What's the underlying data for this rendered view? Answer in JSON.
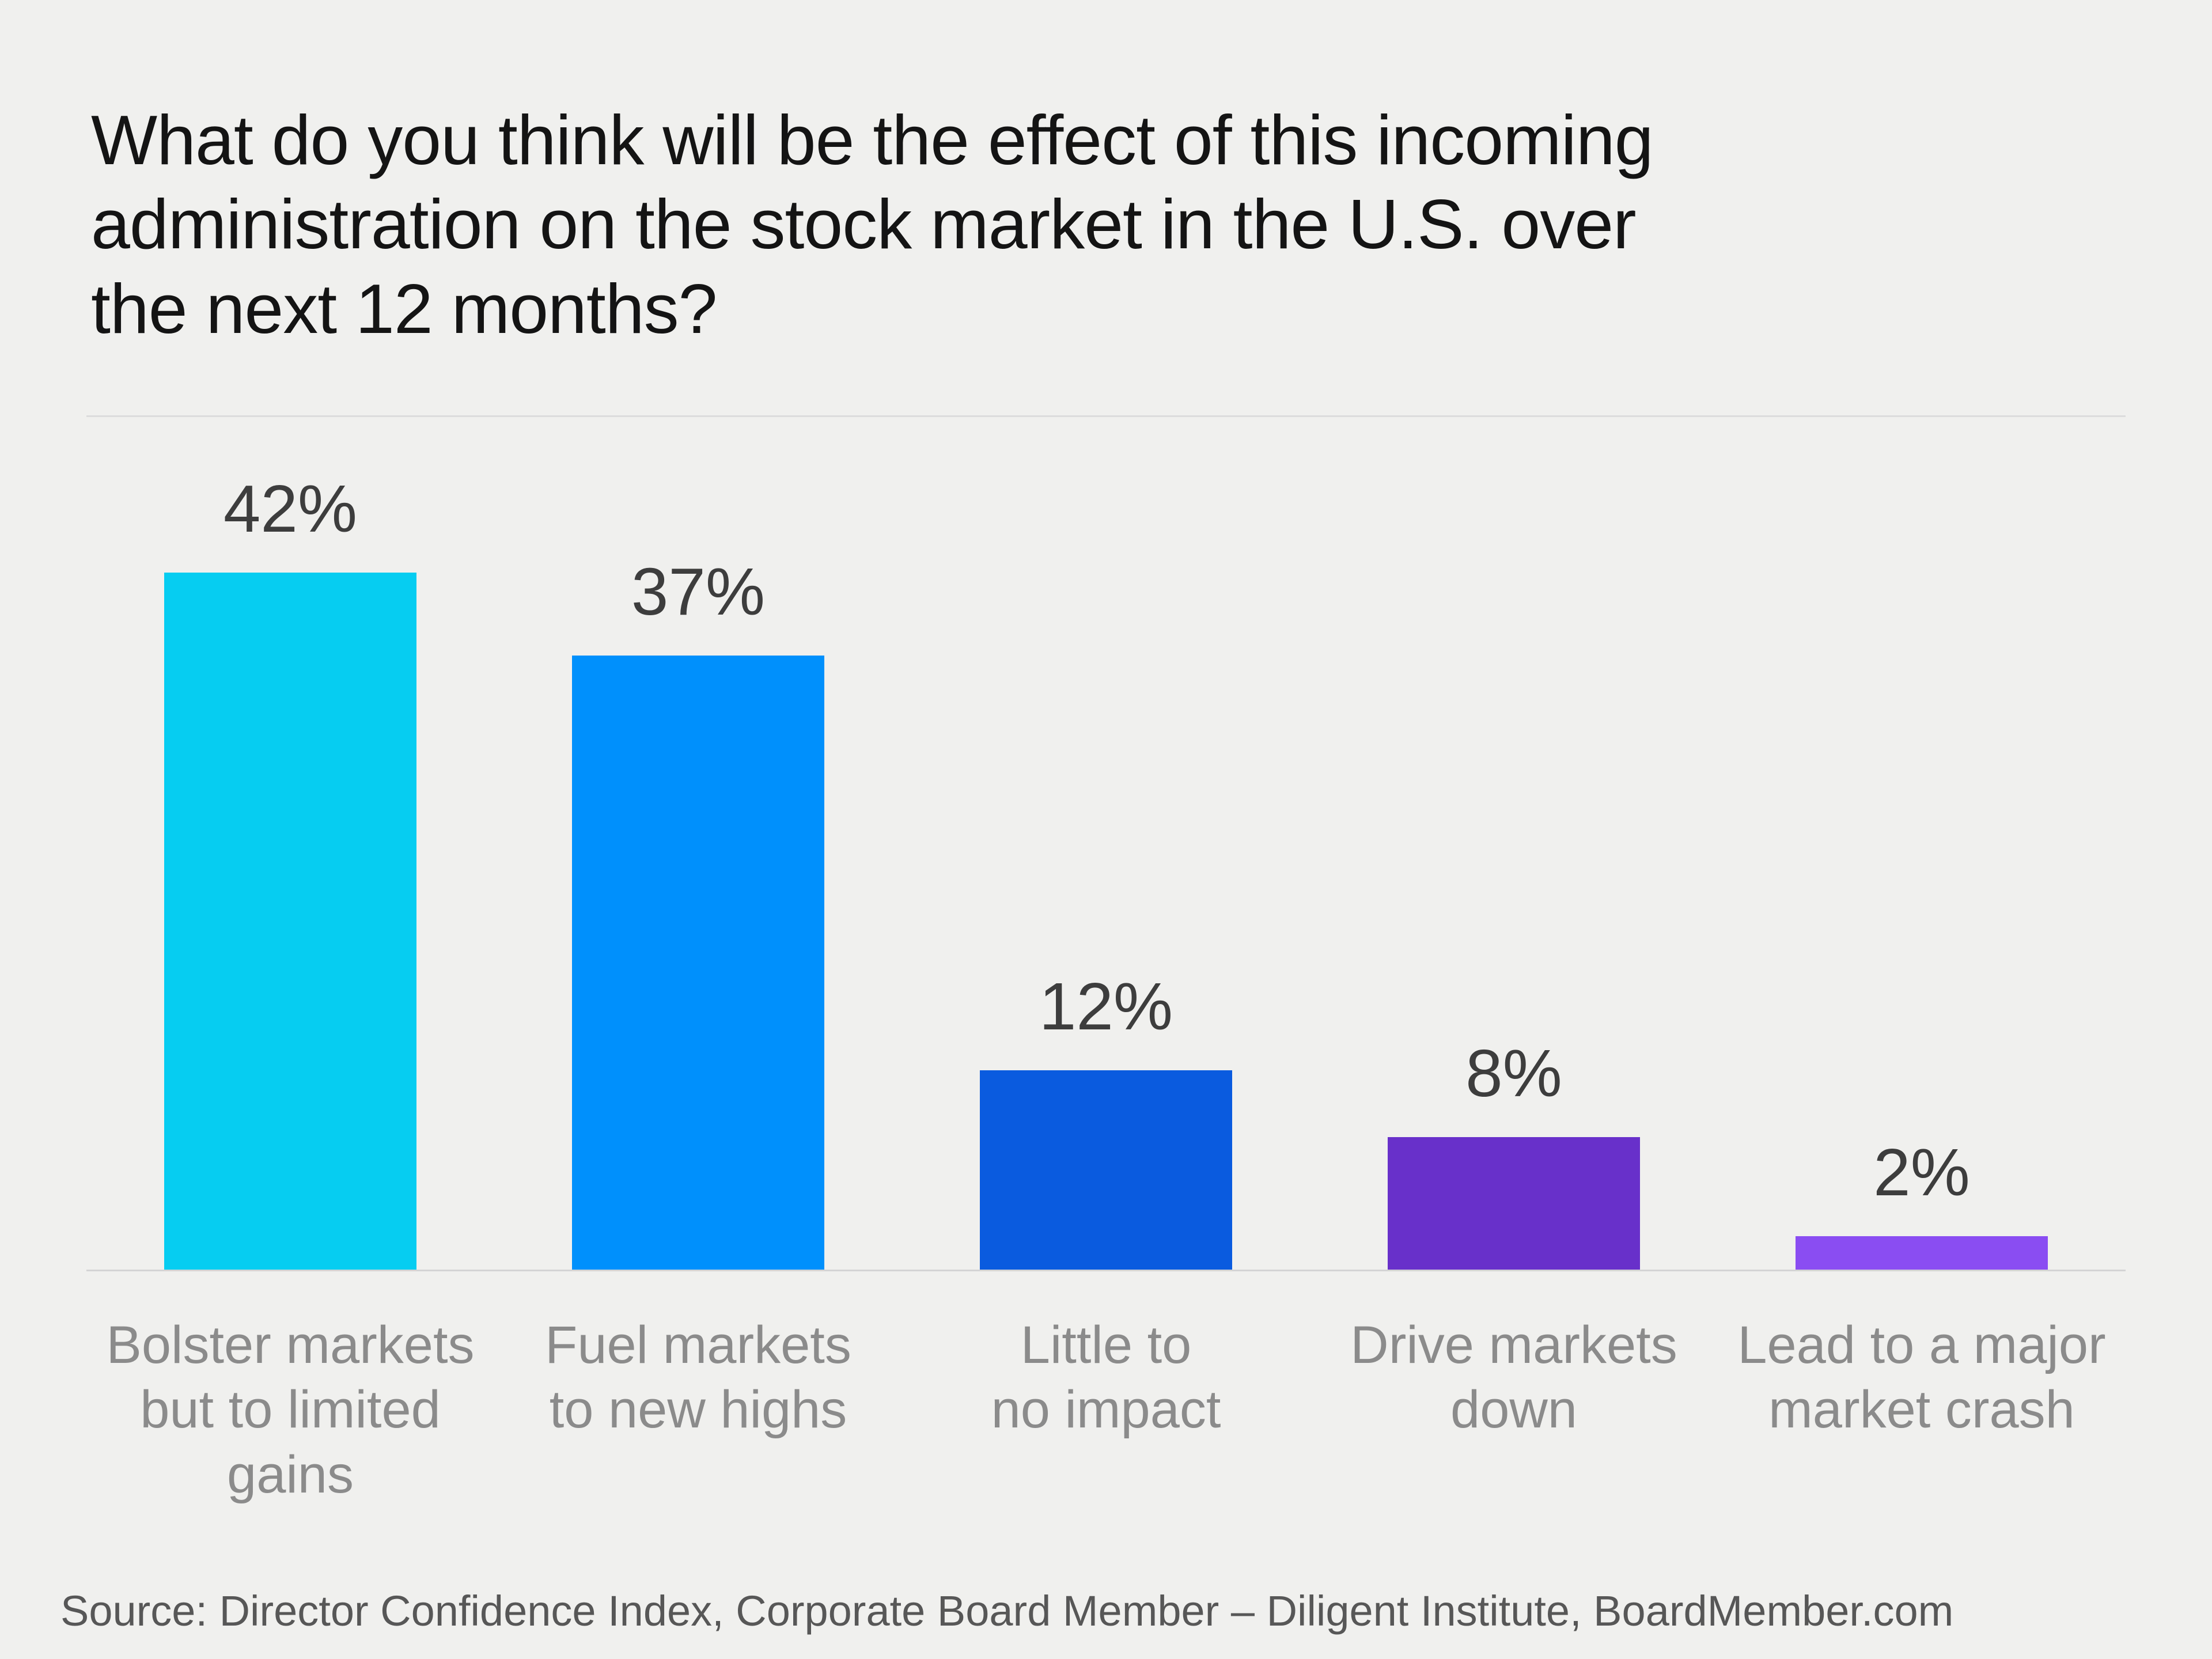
{
  "page": {
    "background_color": "#F0F0EE"
  },
  "header": {
    "title": "What do you think will be the effect of this incoming\nadministration on the stock market in the U.S. over\nthe next 12 months?"
  },
  "chart_data": {
    "type": "bar",
    "title": "What do you think will be the effect of this incoming administration on the stock market in the U.S. over the next 12 months?",
    "categories": [
      "Bolster markets but to limited gains",
      "Fuel markets to new highs",
      "Little to no impact",
      "Drive markets down",
      "Lead to a major market crash"
    ],
    "categories_display": [
      "Bolster markets\nbut to limited\ngains",
      "Fuel markets\nto new highs",
      "Little to\nno impact",
      "Drive markets\ndown",
      "Lead to a major\nmarket crash"
    ],
    "values": [
      42,
      37,
      12,
      8,
      2
    ],
    "value_labels": [
      "42%",
      "37%",
      "12%",
      "8%",
      "2%"
    ],
    "bar_colors": [
      "#06CDF1",
      "#0090FC",
      "#0A5BDF",
      "#6830CA",
      "#8A4DF2"
    ],
    "unit": "%",
    "ylim": [
      0,
      45
    ],
    "grid": false,
    "legend": false,
    "value_label_color": "#3D3D3D",
    "category_label_color": "#8B8B8B",
    "baseline_color": "#D4D4D4"
  },
  "footer": {
    "source": "Source: Director Confidence Index, Corporate Board Member – Diligent Institute, BoardMember.com"
  }
}
